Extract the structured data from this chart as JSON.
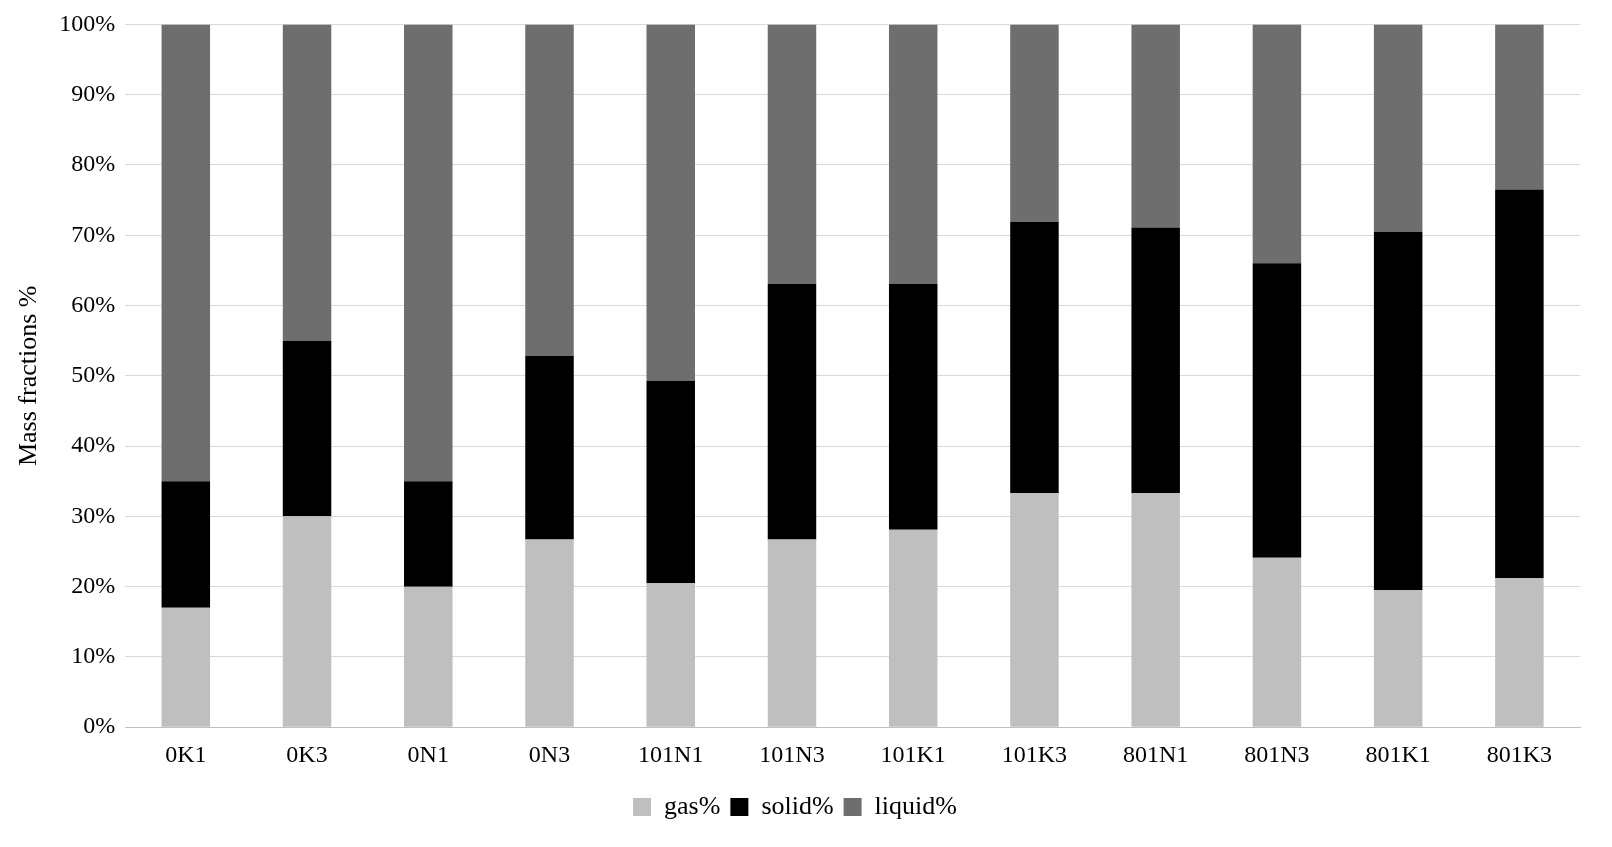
{
  "chart_data": {
    "type": "bar",
    "stacked": true,
    "ylabel": "Mass fractions %",
    "categories": [
      "0K1",
      "0K3",
      "0N1",
      "0N3",
      "101N1",
      "101N3",
      "101K1",
      "101K3",
      "801N1",
      "801N3",
      "801K1",
      "801K3"
    ],
    "series": [
      {
        "name": "gas%",
        "color": "#bfbfbf",
        "values": [
          17,
          30,
          20,
          26.7,
          20.5,
          26.7,
          28.1,
          33.3,
          33.3,
          24.1,
          19.5,
          21.2
        ]
      },
      {
        "name": "solid%",
        "color": "#000000",
        "values": [
          18,
          25,
          15,
          26.1,
          28.8,
          36.4,
          35,
          38.6,
          37.8,
          41.9,
          51,
          55.3
        ]
      },
      {
        "name": "liquid%",
        "color": "#6e6e6e",
        "values": [
          65,
          45,
          65,
          47.2,
          50.7,
          36.9,
          36.9,
          28.1,
          28.9,
          34,
          29.5,
          23.5
        ]
      }
    ],
    "ylim": [
      0,
      100
    ],
    "yticks": [
      {
        "value": 0,
        "label": "0%"
      },
      {
        "value": 10,
        "label": "10%"
      },
      {
        "value": 20,
        "label": "20%"
      },
      {
        "value": 30,
        "label": "30%"
      },
      {
        "value": 40,
        "label": "40%"
      },
      {
        "value": 50,
        "label": "50%"
      },
      {
        "value": 60,
        "label": "60%"
      },
      {
        "value": 70,
        "label": "70%"
      },
      {
        "value": 80,
        "label": "80%"
      },
      {
        "value": 90,
        "label": "90%"
      },
      {
        "value": 100,
        "label": "100%"
      }
    ],
    "grid": "y",
    "legend": "bottom"
  }
}
